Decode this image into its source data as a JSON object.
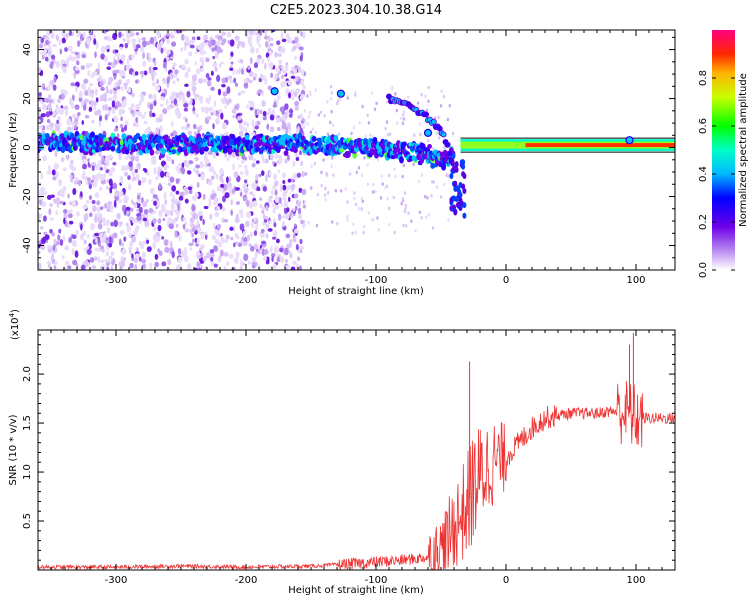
{
  "figure": {
    "title": "C2E5.2023.304.10.38.G14"
  },
  "chart_data": [
    {
      "type": "heatmap",
      "xlabel": "Height of straight line (km)",
      "ylabel": "Frequency (Hz)",
      "xlim": [
        -360,
        130
      ],
      "ylim": [
        -50,
        48
      ],
      "x_ticks": [
        -300,
        -200,
        -100,
        0,
        100
      ],
      "y_ticks": [
        -40,
        -20,
        0,
        20,
        40
      ],
      "x_tick_labels": [
        "-300",
        "-200",
        "-100",
        "0",
        "100"
      ],
      "y_tick_labels": [
        "-40",
        "-20",
        "0",
        "20",
        "40"
      ],
      "colorbar": {
        "label": "Normalized spectral amplitude",
        "range": [
          0,
          1
        ],
        "ticks": [
          0.0,
          0.2,
          0.4,
          0.6,
          0.8
        ],
        "tick_labels": [
          "0.0",
          "0.2",
          "0.4",
          "0.6",
          "0.8"
        ]
      },
      "features": [
        {
          "name": "main carrier line",
          "x": [
            -360,
            -150,
            -100,
            -60,
            -45,
            -35,
            0,
            130
          ],
          "y": [
            2,
            1,
            0,
            -3,
            -6,
            0,
            1,
            1
          ]
        },
        {
          "name": "upper branch",
          "x": [
            -90,
            -70,
            -55,
            -45,
            -40
          ],
          "y": [
            20,
            16,
            10,
            2,
            -10
          ]
        }
      ],
      "grid": false
    },
    {
      "type": "line",
      "xlabel": "Height of straight line (km)",
      "ylabel": "SNR (10 * v/v)",
      "y_multiplier": "(x10",
      "y_multiplier_exp": "4",
      "y_multiplier_close": ")",
      "xlim": [
        -360,
        130
      ],
      "ylim": [
        0,
        2.45
      ],
      "x_ticks": [
        -300,
        -200,
        -100,
        0,
        100
      ],
      "y_ticks": [
        0.5,
        1.0,
        1.5,
        2.0
      ],
      "x_tick_labels": [
        "-300",
        "-200",
        "-100",
        "0",
        "100"
      ],
      "y_tick_labels": [
        "0.5",
        "1.0",
        "1.5",
        "2.0"
      ],
      "color": "#ee3333",
      "grid": false,
      "series": [
        {
          "x": [
            -360,
            -300,
            -250,
            -200,
            -150,
            -120,
            -100,
            -80,
            -60,
            -50,
            -45,
            -40,
            -35,
            -30,
            -25,
            -20,
            -15,
            -10,
            0,
            10,
            20,
            30,
            40,
            50,
            60,
            70,
            80,
            90,
            95,
            100,
            110,
            120,
            130
          ],
          "values": [
            0.03,
            0.03,
            0.04,
            0.03,
            0.04,
            0.06,
            0.08,
            0.1,
            0.13,
            0.2,
            0.3,
            0.45,
            0.55,
            0.65,
            0.85,
            0.95,
            1.05,
            1.1,
            1.15,
            1.3,
            1.45,
            1.55,
            1.58,
            1.6,
            1.6,
            1.6,
            1.62,
            1.62,
            1.6,
            1.55,
            1.55,
            1.55,
            1.55
          ]
        }
      ],
      "spikes": [
        {
          "x": -28,
          "value": 2.13
        },
        {
          "x": 95,
          "value": 2.3
        },
        {
          "x": 98,
          "value": 2.42
        }
      ]
    }
  ]
}
